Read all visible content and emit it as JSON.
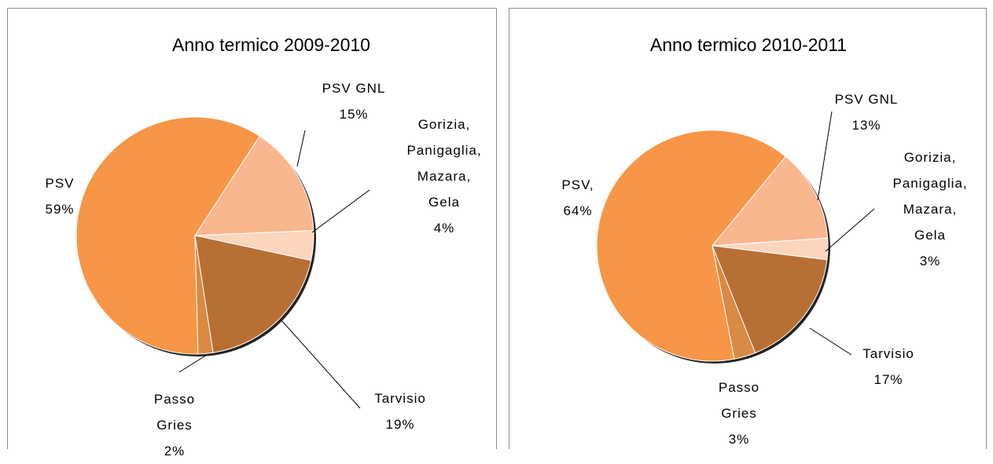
{
  "chart_data": [
    {
      "type": "pie",
      "title": "Anno termico 2009-2010",
      "categories": [
        "PSV",
        "PSV GNL",
        "Gorizia, Panigaglia, Mazara, Gela",
        "Tarvisio",
        "Passo Gries"
      ],
      "values": [
        59,
        15,
        4,
        19,
        2
      ],
      "value_labels": [
        "59%",
        "15%",
        "4%",
        "19%",
        "2%"
      ],
      "colors": [
        "#f79646",
        "#fab68f",
        "#fcd5bd",
        "#b86f34",
        "#d98a44"
      ]
    },
    {
      "type": "pie",
      "title": "Anno termico 2010-2011",
      "categories": [
        "PSV,",
        "PSV GNL",
        "Gorizia, Panigaglia, Mazara, Gela",
        "Tarvisio",
        "Passo Gries"
      ],
      "values": [
        64,
        13,
        3,
        17,
        3
      ],
      "value_labels": [
        "64%",
        "13%",
        "3%",
        "17%",
        "3%"
      ],
      "colors": [
        "#f79646",
        "#fab68f",
        "#fcd5bd",
        "#b86f34",
        "#d98a44"
      ]
    }
  ]
}
